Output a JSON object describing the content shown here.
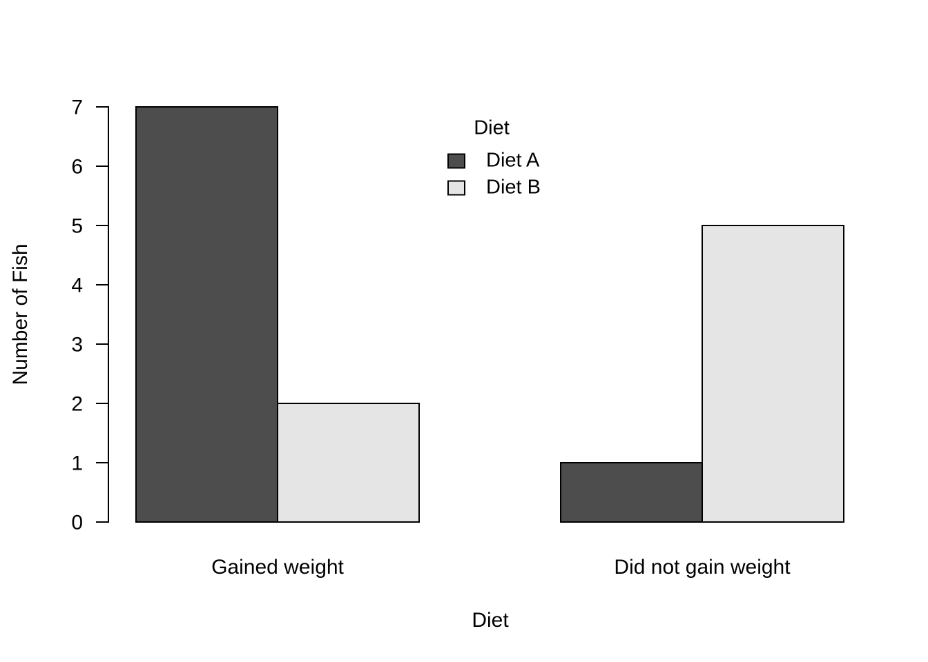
{
  "chart_data": {
    "type": "bar",
    "title": "",
    "xlabel": "Diet",
    "ylabel": "Number of Fish",
    "categories": [
      "Gained weight",
      "Did not gain weight"
    ],
    "series": [
      {
        "name": "Diet A",
        "color": "#4D4D4D",
        "values": [
          7,
          1
        ]
      },
      {
        "name": "Diet B",
        "color": "#E5E5E5",
        "values": [
          2,
          5
        ]
      }
    ],
    "legend_title": "Diet",
    "legend_position": "top-center",
    "y_ticks": [
      0,
      1,
      2,
      3,
      4,
      5,
      6,
      7
    ],
    "ylim": [
      0,
      7
    ],
    "grid": false,
    "bar_border_color": "#000000",
    "background": "#FFFFFF",
    "text_color": "#000000"
  }
}
